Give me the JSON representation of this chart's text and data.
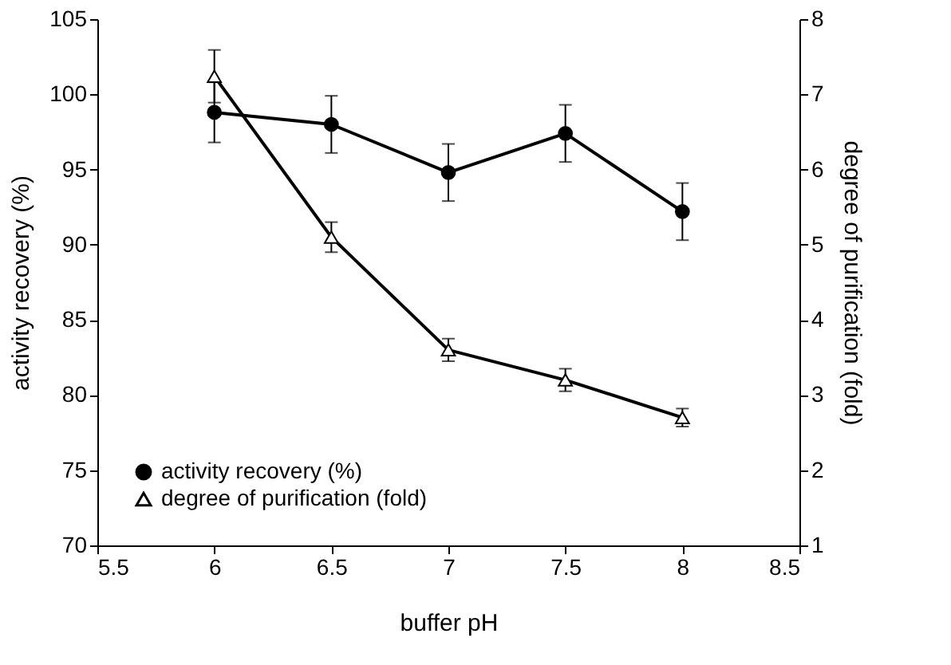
{
  "chart_data": {
    "type": "line",
    "xlabel": "buffer pH",
    "ylabel": "activity recovery (%)",
    "y2label": "degree of purification (fold)",
    "x": [
      6,
      6.5,
      7,
      7.5,
      8
    ],
    "xlim": [
      5.5,
      8.5
    ],
    "xticks": [
      5.5,
      6,
      6.5,
      7,
      7.5,
      8,
      8.5
    ],
    "ylim": [
      70,
      105
    ],
    "yticks": [
      70,
      75,
      80,
      85,
      90,
      95,
      100,
      105
    ],
    "y2lim": [
      1,
      8
    ],
    "y2ticks": [
      1,
      2,
      3,
      4,
      5,
      6,
      7,
      8
    ],
    "legend": "bottom left",
    "grid": false,
    "line_style": "solid",
    "series": [
      {
        "name": "activity recovery (%)",
        "color": "#000000",
        "marker": "circle",
        "values": [
          98.8,
          98.0,
          94.8,
          97.4,
          92.2
        ],
        "errors": [
          2,
          1.9,
          1.9,
          1.9,
          1.9
        ]
      },
      {
        "name": "degree of purification (fold)",
        "color": "#000000",
        "marker": "triangle",
        "axis": "y2",
        "values": [
          7.24,
          5.1,
          3.6,
          3.2,
          2.7
        ],
        "errors": [
          0.35,
          0.2,
          0.15,
          0.15,
          0.12
        ]
      }
    ]
  }
}
